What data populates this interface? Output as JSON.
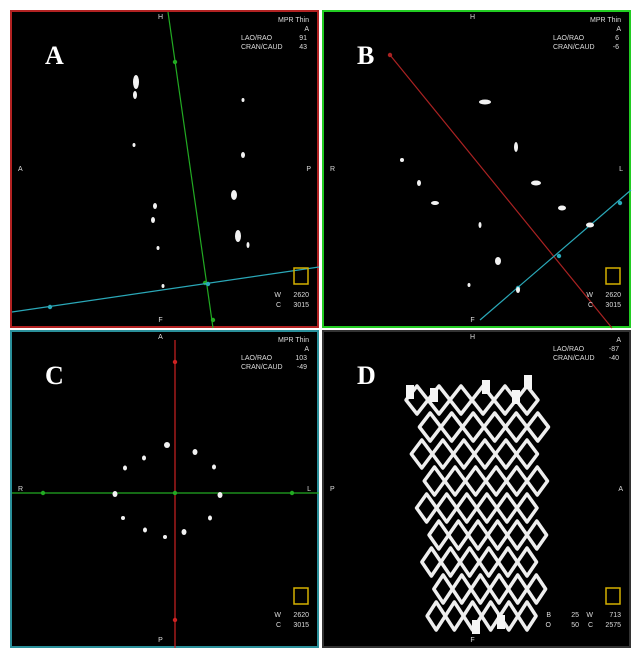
{
  "panels": [
    {
      "label": "A",
      "top": "H",
      "left": "A",
      "right": "P",
      "bottom": "F",
      "header": [
        "MPR Thin",
        "A"
      ],
      "info": [
        {
          "label": "LAO/RAO",
          "value": "91"
        },
        {
          "label": "CRAN/CAUD",
          "value": "43"
        }
      ],
      "footer": [
        [
          {
            "label": "W",
            "value": "2620"
          }
        ],
        [
          {
            "label": "C",
            "value": "3015"
          }
        ]
      ]
    },
    {
      "label": "B",
      "top": "H",
      "left": "R",
      "right": "L",
      "bottom": "F",
      "header": [
        "MPR Thin",
        "A"
      ],
      "info": [
        {
          "label": "LAO/RAO",
          "value": "6"
        },
        {
          "label": "CRAN/CAUD",
          "value": "-6"
        }
      ],
      "footer": [
        [
          {
            "label": "W",
            "value": "2620"
          }
        ],
        [
          {
            "label": "C",
            "value": "3015"
          }
        ]
      ]
    },
    {
      "label": "C",
      "top": "A",
      "left": "R",
      "right": "L",
      "bottom": "P",
      "header": [
        "MPR Thin",
        "A"
      ],
      "info": [
        {
          "label": "LAO/RAO",
          "value": "103"
        },
        {
          "label": "CRAN/CAUD",
          "value": "-49"
        }
      ],
      "footer": [
        [
          {
            "label": "W",
            "value": "2620"
          }
        ],
        [
          {
            "label": "C",
            "value": "3015"
          }
        ]
      ]
    },
    {
      "label": "D",
      "top": "H",
      "left": "P",
      "right": "A",
      "bottom": "F",
      "header": [
        "A"
      ],
      "info": [
        {
          "label": "LAO/RAO",
          "value": "-87"
        },
        {
          "label": "CRAN/CAUD",
          "value": "-40"
        }
      ],
      "footer": [
        [
          {
            "label": "B",
            "value": "25"
          },
          {
            "label": "W",
            "value": "713"
          }
        ],
        [
          {
            "label": "O",
            "value": "50"
          },
          {
            "label": "C",
            "value": "2575"
          }
        ]
      ]
    }
  ]
}
